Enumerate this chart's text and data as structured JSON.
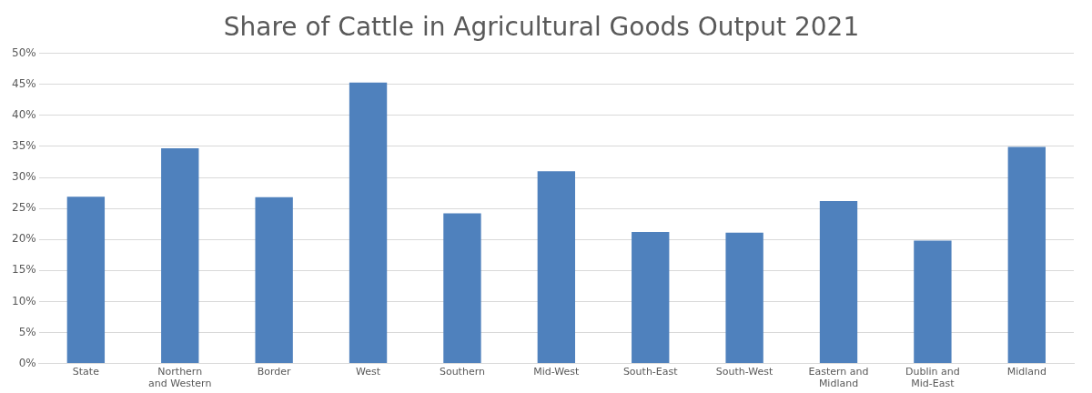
{
  "chart_data": {
    "type": "bar",
    "title": "Share of Cattle in Agricultural Goods Output 2021",
    "categories": [
      "State",
      "Northern and Western",
      "Border",
      "West",
      "Southern",
      "Mid-West",
      "South-East",
      "South-West",
      "Eastern and Midland",
      "Dublin and Mid-East",
      "Midland"
    ],
    "values": [
      26.9,
      34.7,
      26.8,
      45.3,
      24.2,
      31.0,
      21.2,
      21.1,
      26.2,
      19.8,
      34.9
    ],
    "color": "#4f81bd",
    "ylim": [
      0,
      50
    ],
    "yticks": [
      {
        "value": 0,
        "label": "0%"
      },
      {
        "value": 5,
        "label": "5%"
      },
      {
        "value": 10,
        "label": "10%"
      },
      {
        "value": 15,
        "label": "15%"
      },
      {
        "value": 20,
        "label": "20%"
      },
      {
        "value": 25,
        "label": "25%"
      },
      {
        "value": 30,
        "label": "30%"
      },
      {
        "value": 35,
        "label": "35%"
      },
      {
        "value": 40,
        "label": "40%"
      },
      {
        "value": 45,
        "label": "45%"
      },
      {
        "value": 50,
        "label": "50%"
      }
    ],
    "grid": "y"
  }
}
